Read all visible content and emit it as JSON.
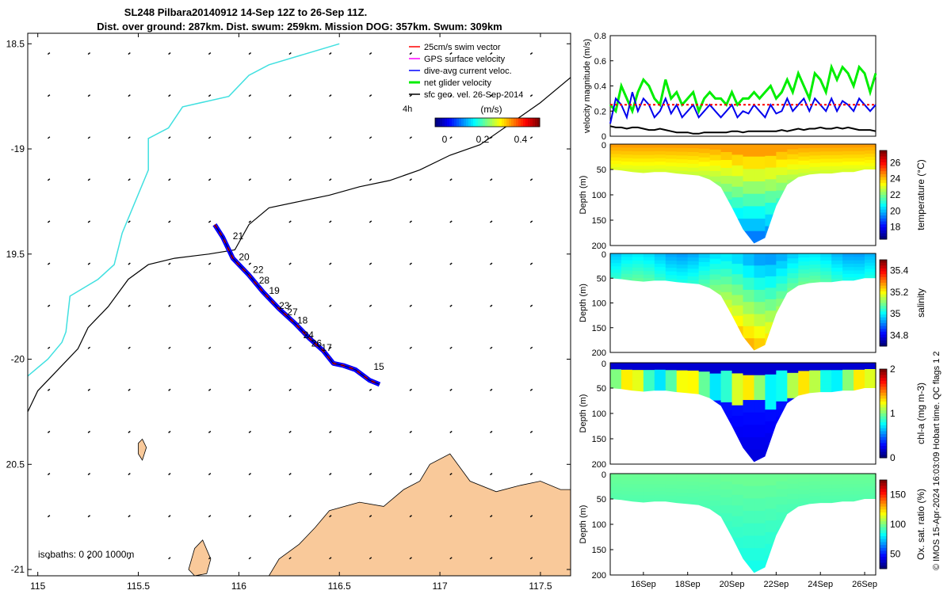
{
  "title": {
    "line1": "SL248 Pilbara20140912 14-Sep 12Z to 26-Sep 11Z.",
    "line2": "Dist. over ground: 287km. Dist. swum: 259km. Mission DOG: 357km. Swum: 309km"
  },
  "footer": "© IMOS 15-Apr-2024 16:03:09 Hobart time. QC flags 1  2",
  "colors": {
    "track": "#0000ff",
    "swim": "#ff0000",
    "isobath_200": "#000000",
    "isobath_1000": "#40e0e0",
    "land": "#f9c99a",
    "net": "#00ee00",
    "dive": "#0000ee",
    "sfc": "#000000",
    "gps": "#ff00ff"
  },
  "chart_data": [
    {
      "type": "map",
      "name": "track-map",
      "xlim": [
        114.95,
        117.65
      ],
      "ylim": [
        -21.03,
        -18.45
      ],
      "x_ticks": [
        115,
        115.5,
        116,
        116.5,
        117,
        117.5
      ],
      "x_tick_labels": [
        "115",
        "115.5",
        "116",
        "116.5",
        "117",
        "117.5"
      ],
      "y_ticks": [
        -18.5,
        -19,
        -19.5,
        -20,
        -20.5,
        -21
      ],
      "y_tick_labels": [
        "18.5",
        "-19",
        "19.5",
        "-20",
        "20.5",
        "-21"
      ],
      "legend": {
        "placement": "top-right",
        "entries": [
          {
            "label": "25cm/s swim vector",
            "color": "#ff0000"
          },
          {
            "label": "GPS surface velocity",
            "color": "#ff00ff"
          },
          {
            "label": "dive-avg current veloc.",
            "color": "#0000ff"
          },
          {
            "label": "net glider velocity",
            "color": "#00ee00"
          },
          {
            "label": "sfc geo. vel. 26-Sep-2014",
            "color": "#000000"
          }
        ],
        "tag": "4h"
      },
      "colorbar": {
        "label": "(m/s)",
        "ticks": [
          0,
          0.2,
          0.4
        ],
        "tick_labels": [
          "0",
          "0.2",
          "0.4"
        ],
        "range": [
          -0.05,
          0.5
        ]
      },
      "isobaths_label": "isobaths: 0   200  1000m",
      "isobath_1000": [
        [
          114.95,
          -20.08
        ],
        [
          115.05,
          -20.0
        ],
        [
          115.12,
          -19.92
        ],
        [
          115.14,
          -19.87
        ],
        [
          115.16,
          -19.7
        ],
        [
          115.3,
          -19.62
        ],
        [
          115.38,
          -19.55
        ],
        [
          115.42,
          -19.4
        ],
        [
          115.55,
          -19.1
        ],
        [
          115.55,
          -18.95
        ],
        [
          115.65,
          -18.9
        ],
        [
          115.72,
          -18.8
        ],
        [
          115.95,
          -18.75
        ],
        [
          116.05,
          -18.65
        ],
        [
          116.15,
          -18.6
        ],
        [
          116.5,
          -18.5
        ]
      ],
      "isobath_200": [
        [
          114.95,
          -20.25
        ],
        [
          115.0,
          -20.15
        ],
        [
          115.1,
          -20.05
        ],
        [
          115.2,
          -19.95
        ],
        [
          115.25,
          -19.85
        ],
        [
          115.28,
          -19.82
        ],
        [
          115.35,
          -19.75
        ],
        [
          115.45,
          -19.62
        ],
        [
          115.55,
          -19.55
        ],
        [
          115.68,
          -19.52
        ],
        [
          115.85,
          -19.5
        ],
        [
          115.98,
          -19.48
        ],
        [
          116.05,
          -19.36
        ],
        [
          116.15,
          -19.28
        ],
        [
          116.3,
          -19.25
        ],
        [
          116.45,
          -19.22
        ],
        [
          116.6,
          -19.18
        ],
        [
          116.75,
          -19.15
        ],
        [
          116.9,
          -19.1
        ],
        [
          117.05,
          -19.03
        ],
        [
          117.2,
          -18.98
        ],
        [
          117.35,
          -18.88
        ],
        [
          117.5,
          -18.78
        ],
        [
          117.65,
          -18.66
        ]
      ],
      "track": [
        [
          115.88,
          -19.36
        ],
        [
          115.92,
          -19.42
        ],
        [
          115.97,
          -19.52
        ],
        [
          116.05,
          -19.6
        ],
        [
          116.12,
          -19.68
        ],
        [
          116.2,
          -19.76
        ],
        [
          116.28,
          -19.83
        ],
        [
          116.35,
          -19.9
        ],
        [
          116.42,
          -19.96
        ],
        [
          116.47,
          -20.02
        ],
        [
          116.52,
          -20.03
        ],
        [
          116.58,
          -20.05
        ],
        [
          116.65,
          -20.1
        ],
        [
          116.7,
          -20.12
        ]
      ],
      "dive_labels": [
        {
          "label": "21",
          "lon": 115.97,
          "lat": -19.43
        },
        {
          "label": "20",
          "lon": 116.0,
          "lat": -19.53
        },
        {
          "label": "22",
          "lon": 116.07,
          "lat": -19.59
        },
        {
          "label": "28",
          "lon": 116.1,
          "lat": -19.64
        },
        {
          "label": "19",
          "lon": 116.15,
          "lat": -19.69
        },
        {
          "label": "23",
          "lon": 116.2,
          "lat": -19.76
        },
        {
          "label": "27",
          "lon": 116.24,
          "lat": -19.79
        },
        {
          "label": "18",
          "lon": 116.29,
          "lat": -19.83
        },
        {
          "label": "24",
          "lon": 116.32,
          "lat": -19.9
        },
        {
          "label": "26",
          "lon": 116.36,
          "lat": -19.94
        },
        {
          "label": "17",
          "lon": 116.41,
          "lat": -19.96
        },
        {
          "label": "15",
          "lon": 116.67,
          "lat": -20.05
        }
      ],
      "islands": [
        [
          [
            115.75,
            -21.0
          ],
          [
            115.78,
            -20.9
          ],
          [
            115.82,
            -20.86
          ],
          [
            115.86,
            -20.95
          ],
          [
            115.84,
            -21.02
          ],
          [
            115.78,
            -21.03
          ]
        ],
        [
          [
            115.5,
            -20.4
          ],
          [
            115.52,
            -20.38
          ],
          [
            115.54,
            -20.42
          ],
          [
            115.52,
            -20.48
          ],
          [
            115.5,
            -20.45
          ]
        ]
      ],
      "coast": [
        [
          116.15,
          -21.03
        ],
        [
          116.2,
          -20.95
        ],
        [
          116.3,
          -20.88
        ],
        [
          116.38,
          -20.8
        ],
        [
          116.45,
          -20.72
        ],
        [
          116.6,
          -20.68
        ],
        [
          116.72,
          -20.7
        ],
        [
          116.82,
          -20.62
        ],
        [
          116.9,
          -20.58
        ],
        [
          116.95,
          -20.5
        ],
        [
          117.05,
          -20.45
        ],
        [
          117.15,
          -20.58
        ],
        [
          117.28,
          -20.63
        ],
        [
          117.4,
          -20.6
        ],
        [
          117.5,
          -20.58
        ],
        [
          117.6,
          -20.62
        ],
        [
          117.65,
          -20.62
        ],
        [
          117.65,
          -21.03
        ]
      ]
    },
    {
      "type": "line",
      "name": "velocity-timeseries",
      "ylabel": "velocity magnitude (m/s)",
      "xlim": [
        14.5,
        26.5
      ],
      "ylim": [
        0,
        0.8
      ],
      "y_ticks": [
        0,
        0.2,
        0.4,
        0.6,
        0.8
      ],
      "y_tick_labels": [
        "0",
        "0.2",
        "0.4",
        "0.6",
        "0.8"
      ],
      "x": [
        14.5,
        14.75,
        15,
        15.25,
        15.5,
        15.75,
        16,
        16.25,
        16.5,
        16.75,
        17,
        17.25,
        17.5,
        17.75,
        18,
        18.25,
        18.5,
        18.75,
        19,
        19.25,
        19.5,
        19.75,
        20,
        20.25,
        20.5,
        20.75,
        21,
        21.25,
        21.5,
        21.75,
        22,
        22.25,
        22.5,
        22.75,
        23,
        23.25,
        23.5,
        23.75,
        24,
        24.25,
        24.5,
        24.75,
        25,
        25.25,
        25.5,
        25.75,
        26,
        26.25,
        26.5
      ],
      "series": [
        {
          "name": "net glider velocity",
          "color": "#00ee00",
          "values": [
            0.25,
            0.2,
            0.4,
            0.3,
            0.2,
            0.35,
            0.45,
            0.4,
            0.3,
            0.25,
            0.45,
            0.3,
            0.35,
            0.25,
            0.3,
            0.35,
            0.2,
            0.3,
            0.35,
            0.3,
            0.3,
            0.25,
            0.35,
            0.25,
            0.3,
            0.3,
            0.35,
            0.3,
            0.35,
            0.4,
            0.3,
            0.35,
            0.45,
            0.35,
            0.5,
            0.4,
            0.3,
            0.5,
            0.45,
            0.35,
            0.55,
            0.45,
            0.55,
            0.5,
            0.4,
            0.55,
            0.5,
            0.35,
            0.5
          ]
        },
        {
          "name": "dive-avg current veloc.",
          "color": "#0000ee",
          "values": [
            0.1,
            0.3,
            0.25,
            0.15,
            0.35,
            0.2,
            0.3,
            0.25,
            0.15,
            0.2,
            0.3,
            0.18,
            0.25,
            0.15,
            0.2,
            0.25,
            0.15,
            0.2,
            0.25,
            0.2,
            0.15,
            0.2,
            0.25,
            0.15,
            0.2,
            0.18,
            0.25,
            0.2,
            0.15,
            0.25,
            0.18,
            0.2,
            0.3,
            0.2,
            0.25,
            0.3,
            0.2,
            0.3,
            0.25,
            0.2,
            0.3,
            0.2,
            0.28,
            0.25,
            0.2,
            0.3,
            0.25,
            0.2,
            0.25
          ]
        },
        {
          "name": "sfc geo. vel.",
          "color": "#000000",
          "values": [
            0.08,
            0.07,
            0.07,
            0.06,
            0.07,
            0.07,
            0.06,
            0.05,
            0.05,
            0.06,
            0.05,
            0.04,
            0.03,
            0.03,
            0.03,
            0.02,
            0.02,
            0.03,
            0.03,
            0.03,
            0.03,
            0.03,
            0.04,
            0.04,
            0.03,
            0.04,
            0.04,
            0.04,
            0.04,
            0.04,
            0.04,
            0.05,
            0.04,
            0.05,
            0.06,
            0.05,
            0.06,
            0.06,
            0.07,
            0.06,
            0.06,
            0.07,
            0.06,
            0.07,
            0.06,
            0.05,
            0.05,
            0.05,
            0.04
          ]
        },
        {
          "name": "25cm/s swim vector",
          "color": "#ff0000",
          "values": [
            0.25,
            0.25,
            0.25,
            0.25,
            0.25,
            0.25,
            0.25,
            0.25,
            0.25,
            0.25,
            0.25,
            0.25,
            0.25,
            0.25,
            0.25,
            0.25,
            0.25,
            0.25,
            0.25,
            0.25,
            0.25,
            0.25,
            0.25,
            0.25,
            0.25,
            0.25,
            0.25,
            0.25,
            0.25,
            0.25,
            0.25,
            0.25,
            0.25,
            0.25,
            0.25,
            0.25,
            0.25,
            0.25,
            0.25,
            0.25,
            0.25,
            0.25,
            0.25,
            0.25,
            0.25,
            0.25,
            0.25,
            0.25,
            0.25
          ]
        }
      ]
    },
    {
      "type": "heatmap",
      "name": "temperature-section",
      "ylabel": "Depth (m)",
      "cbar_label": "temperature (°C)",
      "ylim": [
        200,
        0
      ],
      "y_ticks": [
        50,
        100,
        150,
        200
      ],
      "y_tick_labels": [
        "50",
        "100",
        "150",
        "200"
      ],
      "top_tick_label": "0",
      "clim": [
        16.5,
        27.5
      ],
      "cbar_ticks": [
        18,
        20,
        22,
        24,
        26
      ],
      "cbar_tick_labels": [
        "18",
        "20",
        "22",
        "24",
        "26"
      ],
      "x": [
        14.5,
        15,
        15.5,
        16,
        16.5,
        17,
        17.5,
        18,
        18.5,
        19,
        19.5,
        20,
        20.5,
        21,
        21.5,
        22,
        22.5,
        23,
        23.5,
        24,
        24.5,
        25,
        25.5,
        26,
        26.5
      ],
      "bottom_depth": [
        50,
        52,
        55,
        57,
        55,
        55,
        58,
        60,
        62,
        70,
        85,
        125,
        168,
        196,
        185,
        122,
        80,
        65,
        60,
        58,
        58,
        55,
        55,
        50,
        50
      ],
      "surface_value": 24.8,
      "bottom_value": 18.5
    },
    {
      "type": "heatmap",
      "name": "salinity-section",
      "ylabel": "Depth (m)",
      "cbar_label": "salinity",
      "ylim": [
        200,
        0
      ],
      "y_ticks": [
        50,
        100,
        150,
        200
      ],
      "y_tick_labels": [
        "50",
        "100",
        "150",
        "200"
      ],
      "top_tick_label": "0",
      "clim": [
        34.7,
        35.5
      ],
      "cbar_ticks": [
        34.8,
        35,
        35.2,
        35.4
      ],
      "cbar_tick_labels": [
        "34.8",
        "35",
        "35.2",
        "35.4"
      ],
      "x": [
        14.5,
        15,
        15.5,
        16,
        16.5,
        17,
        17.5,
        18,
        18.5,
        19,
        19.5,
        20,
        20.5,
        21,
        21.5,
        22,
        22.5,
        23,
        23.5,
        24,
        24.5,
        25,
        25.5,
        26,
        26.5
      ],
      "bottom_depth": [
        50,
        52,
        55,
        57,
        55,
        55,
        58,
        60,
        62,
        70,
        85,
        125,
        168,
        196,
        185,
        122,
        80,
        65,
        60,
        58,
        58,
        55,
        55,
        50,
        50
      ],
      "surface_value": 35.0,
      "bottom_value": 35.3
    },
    {
      "type": "heatmap",
      "name": "chlorophyll-section",
      "ylabel": "Depth (m)",
      "cbar_label": "chl-a (mg m-3)",
      "ylim": [
        200,
        0
      ],
      "y_ticks": [
        50,
        100,
        150,
        200
      ],
      "y_tick_labels": [
        "50",
        "100",
        "150",
        "200"
      ],
      "top_tick_label": "0",
      "clim": [
        0,
        2
      ],
      "cbar_ticks": [
        0,
        1,
        2
      ],
      "cbar_tick_labels": [
        "0",
        "1",
        "2"
      ],
      "x": [
        14.5,
        15,
        15.5,
        16,
        16.5,
        17,
        17.5,
        18,
        18.5,
        19,
        19.5,
        20,
        20.5,
        21,
        21.5,
        22,
        22.5,
        23,
        23.5,
        24,
        24.5,
        25,
        25.5,
        26,
        26.5
      ],
      "bottom_depth": [
        50,
        52,
        55,
        57,
        55,
        55,
        58,
        60,
        62,
        70,
        85,
        125,
        168,
        196,
        185,
        122,
        80,
        65,
        60,
        58,
        58,
        55,
        55,
        50,
        50
      ],
      "surface_value": 0.3,
      "bottom_value": 0.2
    },
    {
      "type": "heatmap",
      "name": "oxygen-section",
      "ylabel": "Depth (m)",
      "cbar_label": "Ox. sat. ratio (%)",
      "ylim": [
        200,
        0
      ],
      "y_ticks": [
        50,
        100,
        150,
        200
      ],
      "y_tick_labels": [
        "50",
        "100",
        "150",
        "200"
      ],
      "top_tick_label": "0",
      "clim": [
        25,
        175
      ],
      "cbar_ticks": [
        50,
        100,
        150
      ],
      "cbar_tick_labels": [
        "50",
        "100",
        "150"
      ],
      "x": [
        14.5,
        15,
        15.5,
        16,
        16.5,
        17,
        17.5,
        18,
        18.5,
        19,
        19.5,
        20,
        20.5,
        21,
        21.5,
        22,
        22.5,
        23,
        23.5,
        24,
        24.5,
        25,
        25.5,
        26,
        26.5
      ],
      "bottom_depth": [
        50,
        52,
        55,
        57,
        55,
        55,
        58,
        60,
        62,
        70,
        85,
        125,
        168,
        196,
        185,
        122,
        80,
        65,
        60,
        58,
        58,
        55,
        55,
        50,
        50
      ],
      "surface_value": 105,
      "bottom_value": 95
    }
  ],
  "time_axis": {
    "ticks": [
      16,
      18,
      20,
      22,
      24,
      26
    ],
    "tick_labels": [
      "16Sep",
      "18Sep",
      "20Sep",
      "22Sep",
      "24Sep",
      "26Sep"
    ]
  }
}
